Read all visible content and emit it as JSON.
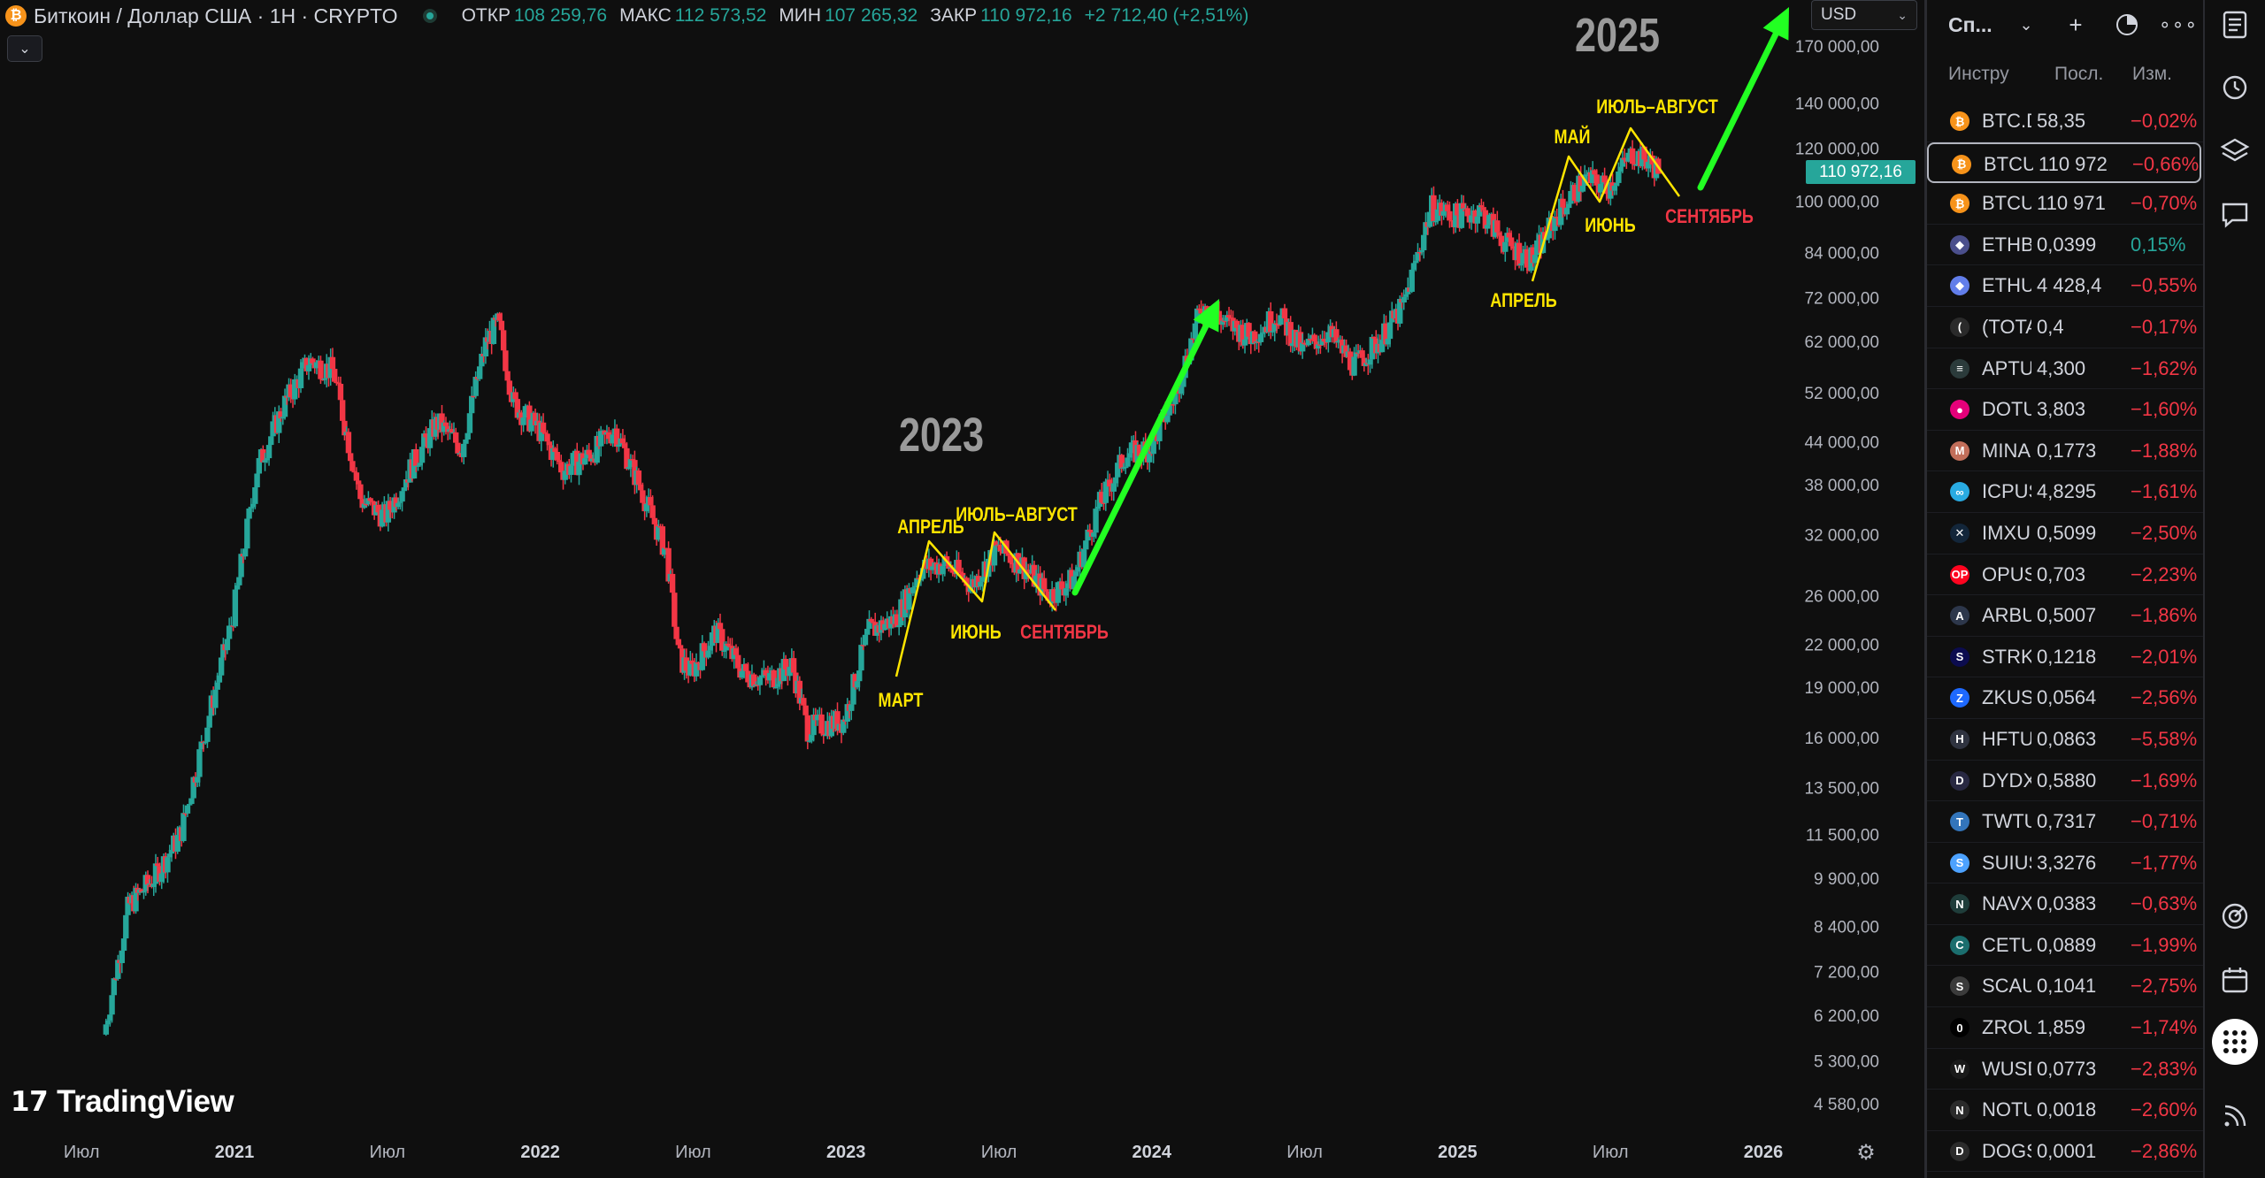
{
  "legend": {
    "title": "Биткоин / Доллар США · 1H · CRYPTO",
    "open_label": "ОТКР",
    "open_value": "108 259,76",
    "high_label": "МАКС",
    "high_value": "112 573,52",
    "low_label": "МИН",
    "low_value": "107 265,32",
    "close_label": "ЗАКР",
    "close_value": "110 972,16",
    "change_value": "+2 712,40 (+2,51%)"
  },
  "currency": "USD",
  "last_price_tag": "110 972,16",
  "branding": "TradingView",
  "chart_data": {
    "type": "candlestick",
    "title": "Биткоин / Доллар США · 1H · CRYPTO",
    "y_scale": "log",
    "y_ticks": [
      "170 000,00",
      "140 000,00",
      "120 000,00",
      "100 000,00",
      "84 000,00",
      "72 000,00",
      "62 000,00",
      "52 000,00",
      "44 000,00",
      "38 000,00",
      "32 000,00",
      "26 000,00",
      "22 000,00",
      "19 000,00",
      "16 000,00",
      "13 500,00",
      "11 500,00",
      "9 900,00",
      "8 400,00",
      "7 200,00",
      "6 200,00",
      "5 300,00",
      "4 580,00"
    ],
    "x_ticks": [
      "Июл",
      "2021",
      "Июл",
      "2022",
      "Июл",
      "2023",
      "Июл",
      "2024",
      "Июл",
      "2025",
      "Июл",
      "2026"
    ],
    "price_path": [
      [
        2020.58,
        5800
      ],
      [
        2020.66,
        9000
      ],
      [
        2020.75,
        10000
      ],
      [
        2020.83,
        11500
      ],
      [
        2020.92,
        17000
      ],
      [
        2021.0,
        24000
      ],
      [
        2021.08,
        40000
      ],
      [
        2021.17,
        50000
      ],
      [
        2021.25,
        58000
      ],
      [
        2021.33,
        56000
      ],
      [
        2021.42,
        36000
      ],
      [
        2021.5,
        34000
      ],
      [
        2021.58,
        40000
      ],
      [
        2021.67,
        47000
      ],
      [
        2021.75,
        43000
      ],
      [
        2021.83,
        62000
      ],
      [
        2021.87,
        66000
      ],
      [
        2021.92,
        50000
      ],
      [
        2022.0,
        46000
      ],
      [
        2022.08,
        40000
      ],
      [
        2022.17,
        42000
      ],
      [
        2022.25,
        46000
      ],
      [
        2022.33,
        38000
      ],
      [
        2022.42,
        30000
      ],
      [
        2022.46,
        21000
      ],
      [
        2022.5,
        20000
      ],
      [
        2022.58,
        23000
      ],
      [
        2022.67,
        20000
      ],
      [
        2022.75,
        19500
      ],
      [
        2022.83,
        20500
      ],
      [
        2022.88,
        16500
      ],
      [
        2023.0,
        17000
      ],
      [
        2023.08,
        23000
      ],
      [
        2023.17,
        24000
      ],
      [
        2023.25,
        28500
      ],
      [
        2023.33,
        29000
      ],
      [
        2023.42,
        27000
      ],
      [
        2023.5,
        30500
      ],
      [
        2023.58,
        29000
      ],
      [
        2023.67,
        26000
      ],
      [
        2023.75,
        27500
      ],
      [
        2023.83,
        35000
      ],
      [
        2023.92,
        42000
      ],
      [
        2024.0,
        43000
      ],
      [
        2024.08,
        51000
      ],
      [
        2024.17,
        70000
      ],
      [
        2024.25,
        66000
      ],
      [
        2024.33,
        63000
      ],
      [
        2024.42,
        68000
      ],
      [
        2024.5,
        60000
      ],
      [
        2024.58,
        64000
      ],
      [
        2024.67,
        57000
      ],
      [
        2024.75,
        62000
      ],
      [
        2024.83,
        70000
      ],
      [
        2024.92,
        98000
      ],
      [
        2025.0,
        95000
      ],
      [
        2025.08,
        97000
      ],
      [
        2025.17,
        86000
      ],
      [
        2025.25,
        82000
      ],
      [
        2025.33,
        95000
      ],
      [
        2025.42,
        108000
      ],
      [
        2025.5,
        105000
      ],
      [
        2025.58,
        118000
      ],
      [
        2025.66,
        112000
      ]
    ],
    "annotations": [
      {
        "text": "2023",
        "color": "#9a9a9a"
      },
      {
        "text": "2025",
        "color": "#9a9a9a"
      },
      {
        "text": "МАРТ",
        "color": "#ffe500"
      },
      {
        "text": "АПРЕЛЬ",
        "color": "#ffe500"
      },
      {
        "text": "ИЮНЬ",
        "color": "#ffe500"
      },
      {
        "text": "ИЮЛЬ–АВГУСТ",
        "color": "#ffe500"
      },
      {
        "text": "СЕНТЯБРЬ",
        "color": "#f23645"
      },
      {
        "text": "АПРЕЛЬ",
        "color": "#ffe500"
      },
      {
        "text": "МАЙ",
        "color": "#ffe500"
      },
      {
        "text": "ИЮНЬ",
        "color": "#ffe500"
      },
      {
        "text": "ИЮЛЬ–АВГУСТ",
        "color": "#ffe500"
      },
      {
        "text": "СЕНТЯБРЬ",
        "color": "#f23645"
      }
    ],
    "up_color": "#26a69a",
    "down_color": "#f23645",
    "arrow_color": "#22ff22"
  },
  "watchlist": {
    "title": "Сп...",
    "col_symbol": "Инстру",
    "col_last": "Посл.",
    "col_change": "Изм.",
    "rows": [
      {
        "sym": "BTC.D",
        "last": "58,35",
        "chg": "−0,02%",
        "dir": "down",
        "icon": "₿",
        "color": "#f7931a"
      },
      {
        "sym": "BTCUSD",
        "last": "110 972",
        "chg": "−0,66%",
        "dir": "down",
        "icon": "₿",
        "color": "#f7931a",
        "selected": true
      },
      {
        "sym": "BTCUSDT",
        "last": "110 971",
        "chg": "−0,70%",
        "dir": "down",
        "icon": "₿",
        "color": "#f7931a"
      },
      {
        "sym": "ETHBTC",
        "last": "0,0399",
        "chg": "0,15%",
        "dir": "up",
        "icon": "◆",
        "color": "#4b4f8c"
      },
      {
        "sym": "ETHUSD",
        "last": "4 428,4",
        "chg": "−0,55%",
        "dir": "down",
        "icon": "◆",
        "color": "#627eea"
      },
      {
        "sym": "(TOTAL)",
        "last": "0,4",
        "chg": "−0,17%",
        "dir": "down",
        "icon": "(",
        "color": "#2a2a2a"
      },
      {
        "sym": "APTUSD",
        "last": "4,300",
        "chg": "−1,62%",
        "dir": "down",
        "icon": "≡",
        "color": "#2b3b3b"
      },
      {
        "sym": "DOTUSD",
        "last": "3,803",
        "chg": "−1,60%",
        "dir": "down",
        "icon": "●",
        "color": "#e6007a"
      },
      {
        "sym": "MINAUSD",
        "last": "0,1773",
        "chg": "−1,88%",
        "dir": "down",
        "icon": "M",
        "color": "#c26e5a"
      },
      {
        "sym": "ICPUSD",
        "last": "4,8295",
        "chg": "−1,61%",
        "dir": "down",
        "icon": "∞",
        "color": "#29abe2"
      },
      {
        "sym": "IMXUSD",
        "last": "0,5099",
        "chg": "−2,50%",
        "dir": "down",
        "icon": "✕",
        "color": "#13263a"
      },
      {
        "sym": "OPUSD",
        "last": "0,703",
        "chg": "−2,23%",
        "dir": "down",
        "icon": "OP",
        "color": "#ff0420"
      },
      {
        "sym": "ARBUSD",
        "last": "0,5007",
        "chg": "−1,86%",
        "dir": "down",
        "icon": "A",
        "color": "#2d374b"
      },
      {
        "sym": "STRKUSD",
        "last": "0,1218",
        "chg": "−2,01%",
        "dir": "down",
        "icon": "S",
        "color": "#0c0c4f"
      },
      {
        "sym": "ZKUSD",
        "last": "0,0564",
        "chg": "−2,56%",
        "dir": "down",
        "icon": "Z",
        "color": "#1e69ff"
      },
      {
        "sym": "HFTUSD",
        "last": "0,0863",
        "chg": "−5,58%",
        "dir": "down",
        "icon": "H",
        "color": "#2f3340"
      },
      {
        "sym": "DYDXUSD",
        "last": "0,5880",
        "chg": "−1,69%",
        "dir": "down",
        "icon": "D",
        "color": "#282842"
      },
      {
        "sym": "TWTUSD",
        "last": "0,7317",
        "chg": "−0,71%",
        "dir": "down",
        "icon": "T",
        "color": "#3375bb"
      },
      {
        "sym": "SUIUSD",
        "last": "3,3276",
        "chg": "−1,77%",
        "dir": "down",
        "icon": "S",
        "color": "#4da2ff"
      },
      {
        "sym": "NAVXUSD",
        "last": "0,0383",
        "chg": "−0,63%",
        "dir": "down",
        "icon": "N",
        "color": "#1f3d3a"
      },
      {
        "sym": "CETUSUSD",
        "last": "0,0889",
        "chg": "−1,99%",
        "dir": "down",
        "icon": "C",
        "color": "#1b6e6e"
      },
      {
        "sym": "SCAUSD",
        "last": "0,1041",
        "chg": "−2,75%",
        "dir": "down",
        "icon": "S",
        "color": "#3b3b3b"
      },
      {
        "sym": "ZROUSD",
        "last": "1,859",
        "chg": "−1,74%",
        "dir": "down",
        "icon": "0",
        "color": "#000000"
      },
      {
        "sym": "WUSDT",
        "last": "0,0773",
        "chg": "−2,83%",
        "dir": "down",
        "icon": "W",
        "color": "#1a1a1a"
      },
      {
        "sym": "NOTUSD",
        "last": "0,0018",
        "chg": "−2,60%",
        "dir": "down",
        "icon": "N",
        "color": "#2b2b2b"
      },
      {
        "sym": "DOGSUSD",
        "last": "0,0001",
        "chg": "−2,86%",
        "dir": "down",
        "icon": "D",
        "color": "#2b2b2b"
      }
    ]
  }
}
